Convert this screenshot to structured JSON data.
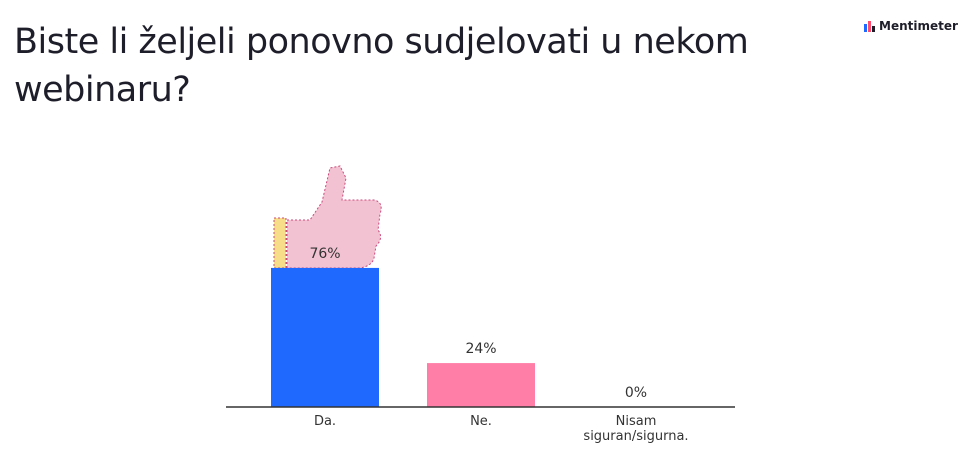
{
  "header": {
    "title": "Biste li željeli ponovno sudjelovati u nekom webinaru?",
    "brand": "Mentimeter"
  },
  "icons": {
    "brand_logo": "mentimeter-bars-logo",
    "bar_decoration": "thumbs-up-icon"
  },
  "colors": {
    "bar_da": "#1f69ff",
    "bar_ne": "#ff7ea7",
    "bar_nisam": "#ffd166",
    "axis": "#333333",
    "brand_accent": "#ff4b6e"
  },
  "chart_data": {
    "type": "bar",
    "categories": [
      "Da.",
      "Ne.",
      "Nisam siguran/sigurna."
    ],
    "category_lines": [
      [
        "Da."
      ],
      [
        "Ne."
      ],
      [
        "Nisam",
        "siguran/sigurna."
      ]
    ],
    "values": [
      76,
      24,
      0
    ],
    "value_labels": [
      "76%",
      "24%",
      "0%"
    ],
    "unit": "%",
    "title": "Biste li željeli ponovno sudjelovati u nekom webinaru?",
    "xlabel": "",
    "ylabel": "",
    "grid": false,
    "legend": "none"
  }
}
